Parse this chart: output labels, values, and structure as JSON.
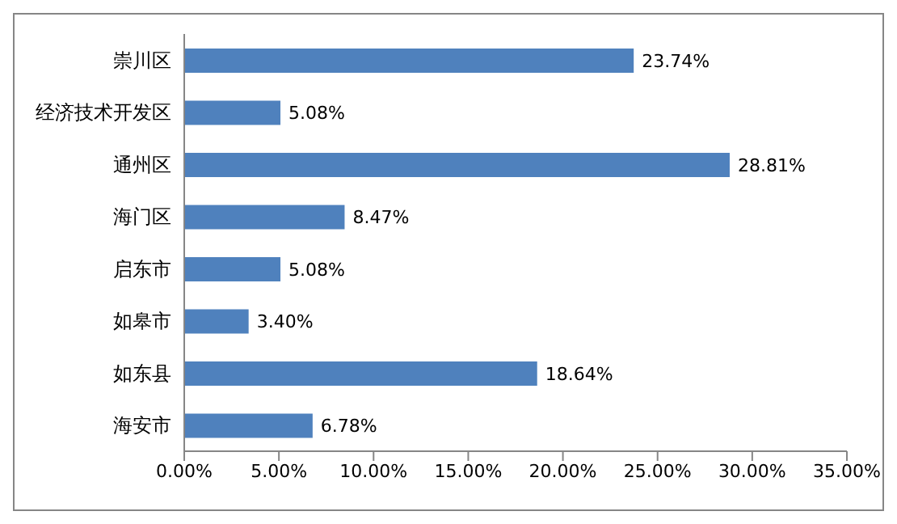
{
  "chart_data": {
    "type": "bar",
    "orientation": "horizontal",
    "categories": [
      "崇川区",
      "经济技术开发区",
      "通州区",
      "海门区",
      "启东市",
      "如皋市",
      "如东县",
      "海安市"
    ],
    "values": [
      23.74,
      5.08,
      28.81,
      8.47,
      5.08,
      3.4,
      18.64,
      6.78
    ],
    "value_labels": [
      "23.74%",
      "5.08%",
      "28.81%",
      "8.47%",
      "5.08%",
      "3.40%",
      "18.64%",
      "6.78%"
    ],
    "color": "#4f81bd",
    "xlim": [
      0,
      35
    ],
    "xticks": [
      {
        "value": 0,
        "label": "0.00%"
      },
      {
        "value": 5,
        "label": "5.00%"
      },
      {
        "value": 10,
        "label": "10.00%"
      },
      {
        "value": 15,
        "label": "15.00%"
      },
      {
        "value": 20,
        "label": "20.00%"
      },
      {
        "value": 25,
        "label": "25.00%"
      },
      {
        "value": 30,
        "label": "30.00%"
      },
      {
        "value": 35,
        "label": "35.00%"
      }
    ],
    "grid": false,
    "legend": false
  }
}
